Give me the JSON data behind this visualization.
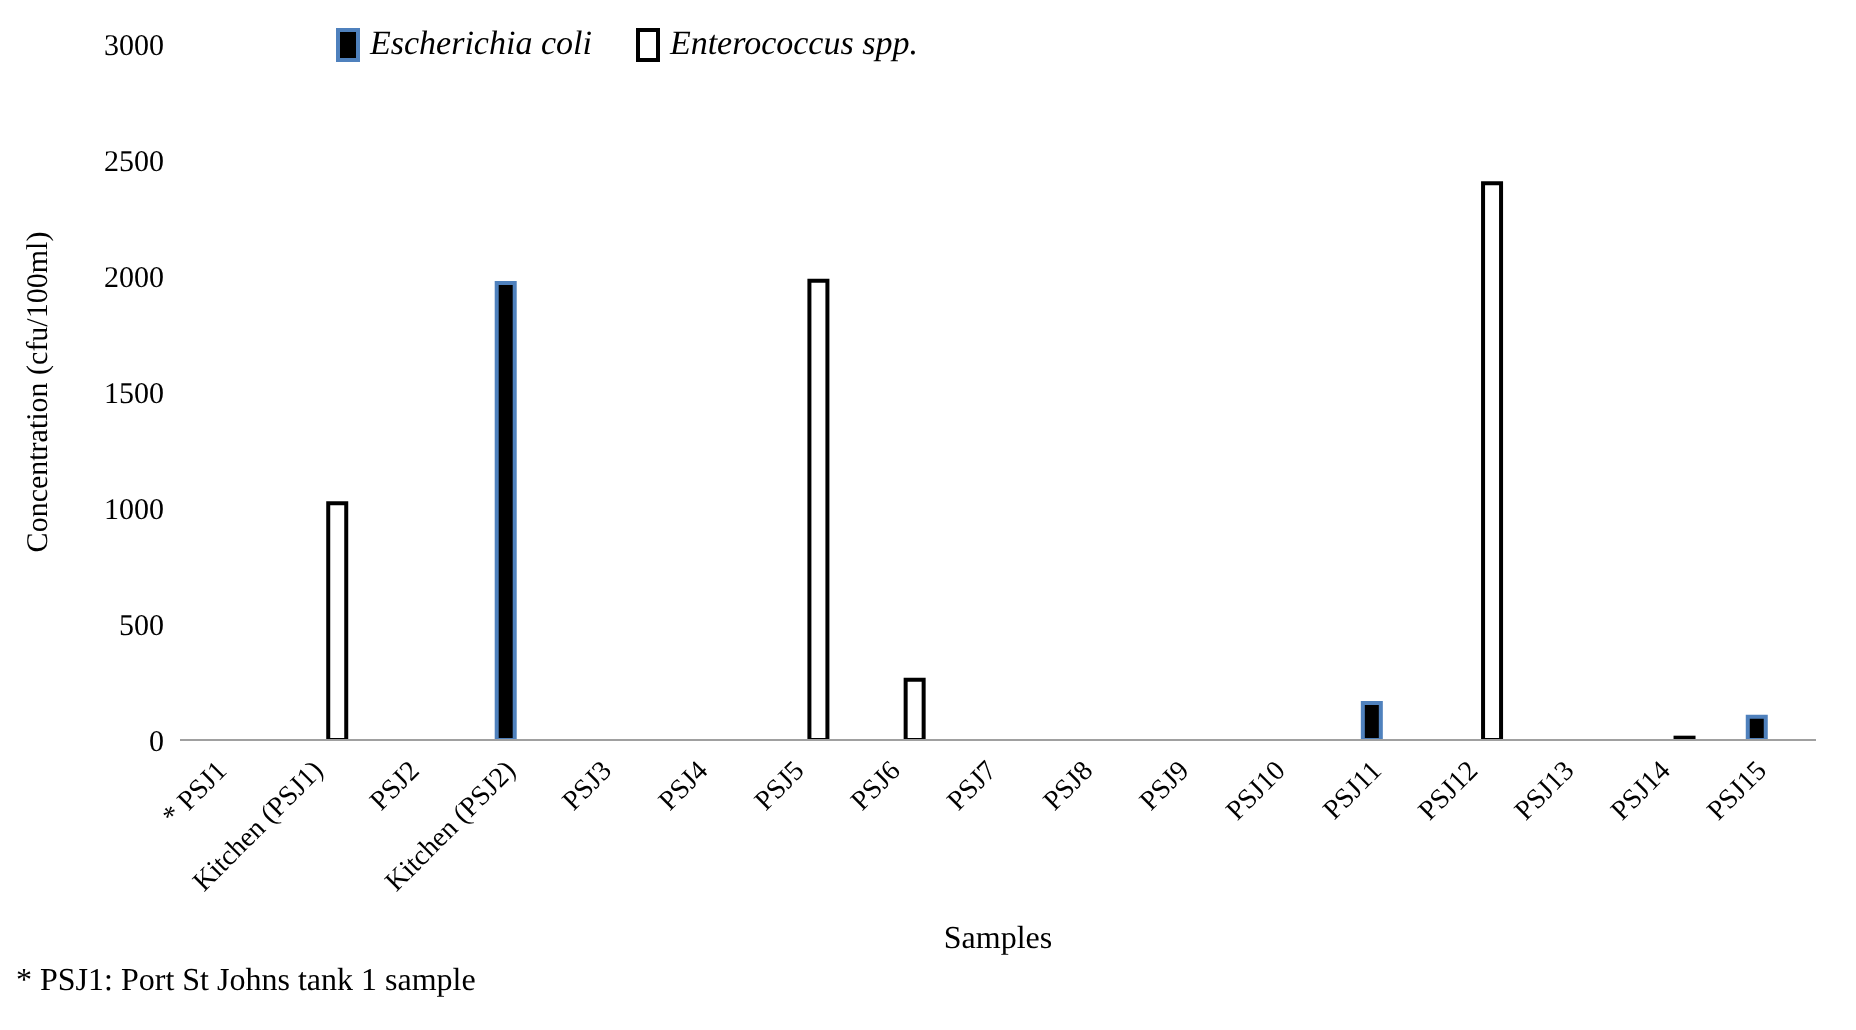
{
  "chart_data": {
    "type": "bar",
    "xlabel": "Samples",
    "ylabel": "Concentration (cfu/100ml)",
    "categories": [
      "* PSJ1",
      "Kitchen (PSJ1)",
      "PSJ2",
      "Kitchen (PSJ2)",
      "PSJ3",
      "PSJ4",
      "PSJ5",
      "PSJ6",
      "PSJ7",
      "PSJ8",
      "PSJ9",
      "PSJ10",
      "PSJ11",
      "PSJ12",
      "PSJ13",
      "PSJ14",
      "PSJ15"
    ],
    "series": [
      {
        "name": "Escherichia coli",
        "color": "#000000",
        "values": [
          0,
          0,
          0,
          1970,
          0,
          0,
          0,
          0,
          0,
          0,
          0,
          0,
          160,
          0,
          0,
          0,
          100
        ]
      },
      {
        "name": "Enterococcus spp.",
        "color": "#ffffff",
        "values": [
          0,
          1020,
          0,
          0,
          0,
          0,
          1980,
          260,
          0,
          0,
          0,
          0,
          0,
          2400,
          0,
          10,
          0
        ]
      }
    ],
    "ylim": [
      0,
      3000
    ],
    "yticks": [
      0,
      500,
      1000,
      1500,
      2000,
      2500,
      3000
    ],
    "legend": "top left",
    "annotations": [
      "* PSJ1: Port St Johns tank 1 sample"
    ]
  }
}
